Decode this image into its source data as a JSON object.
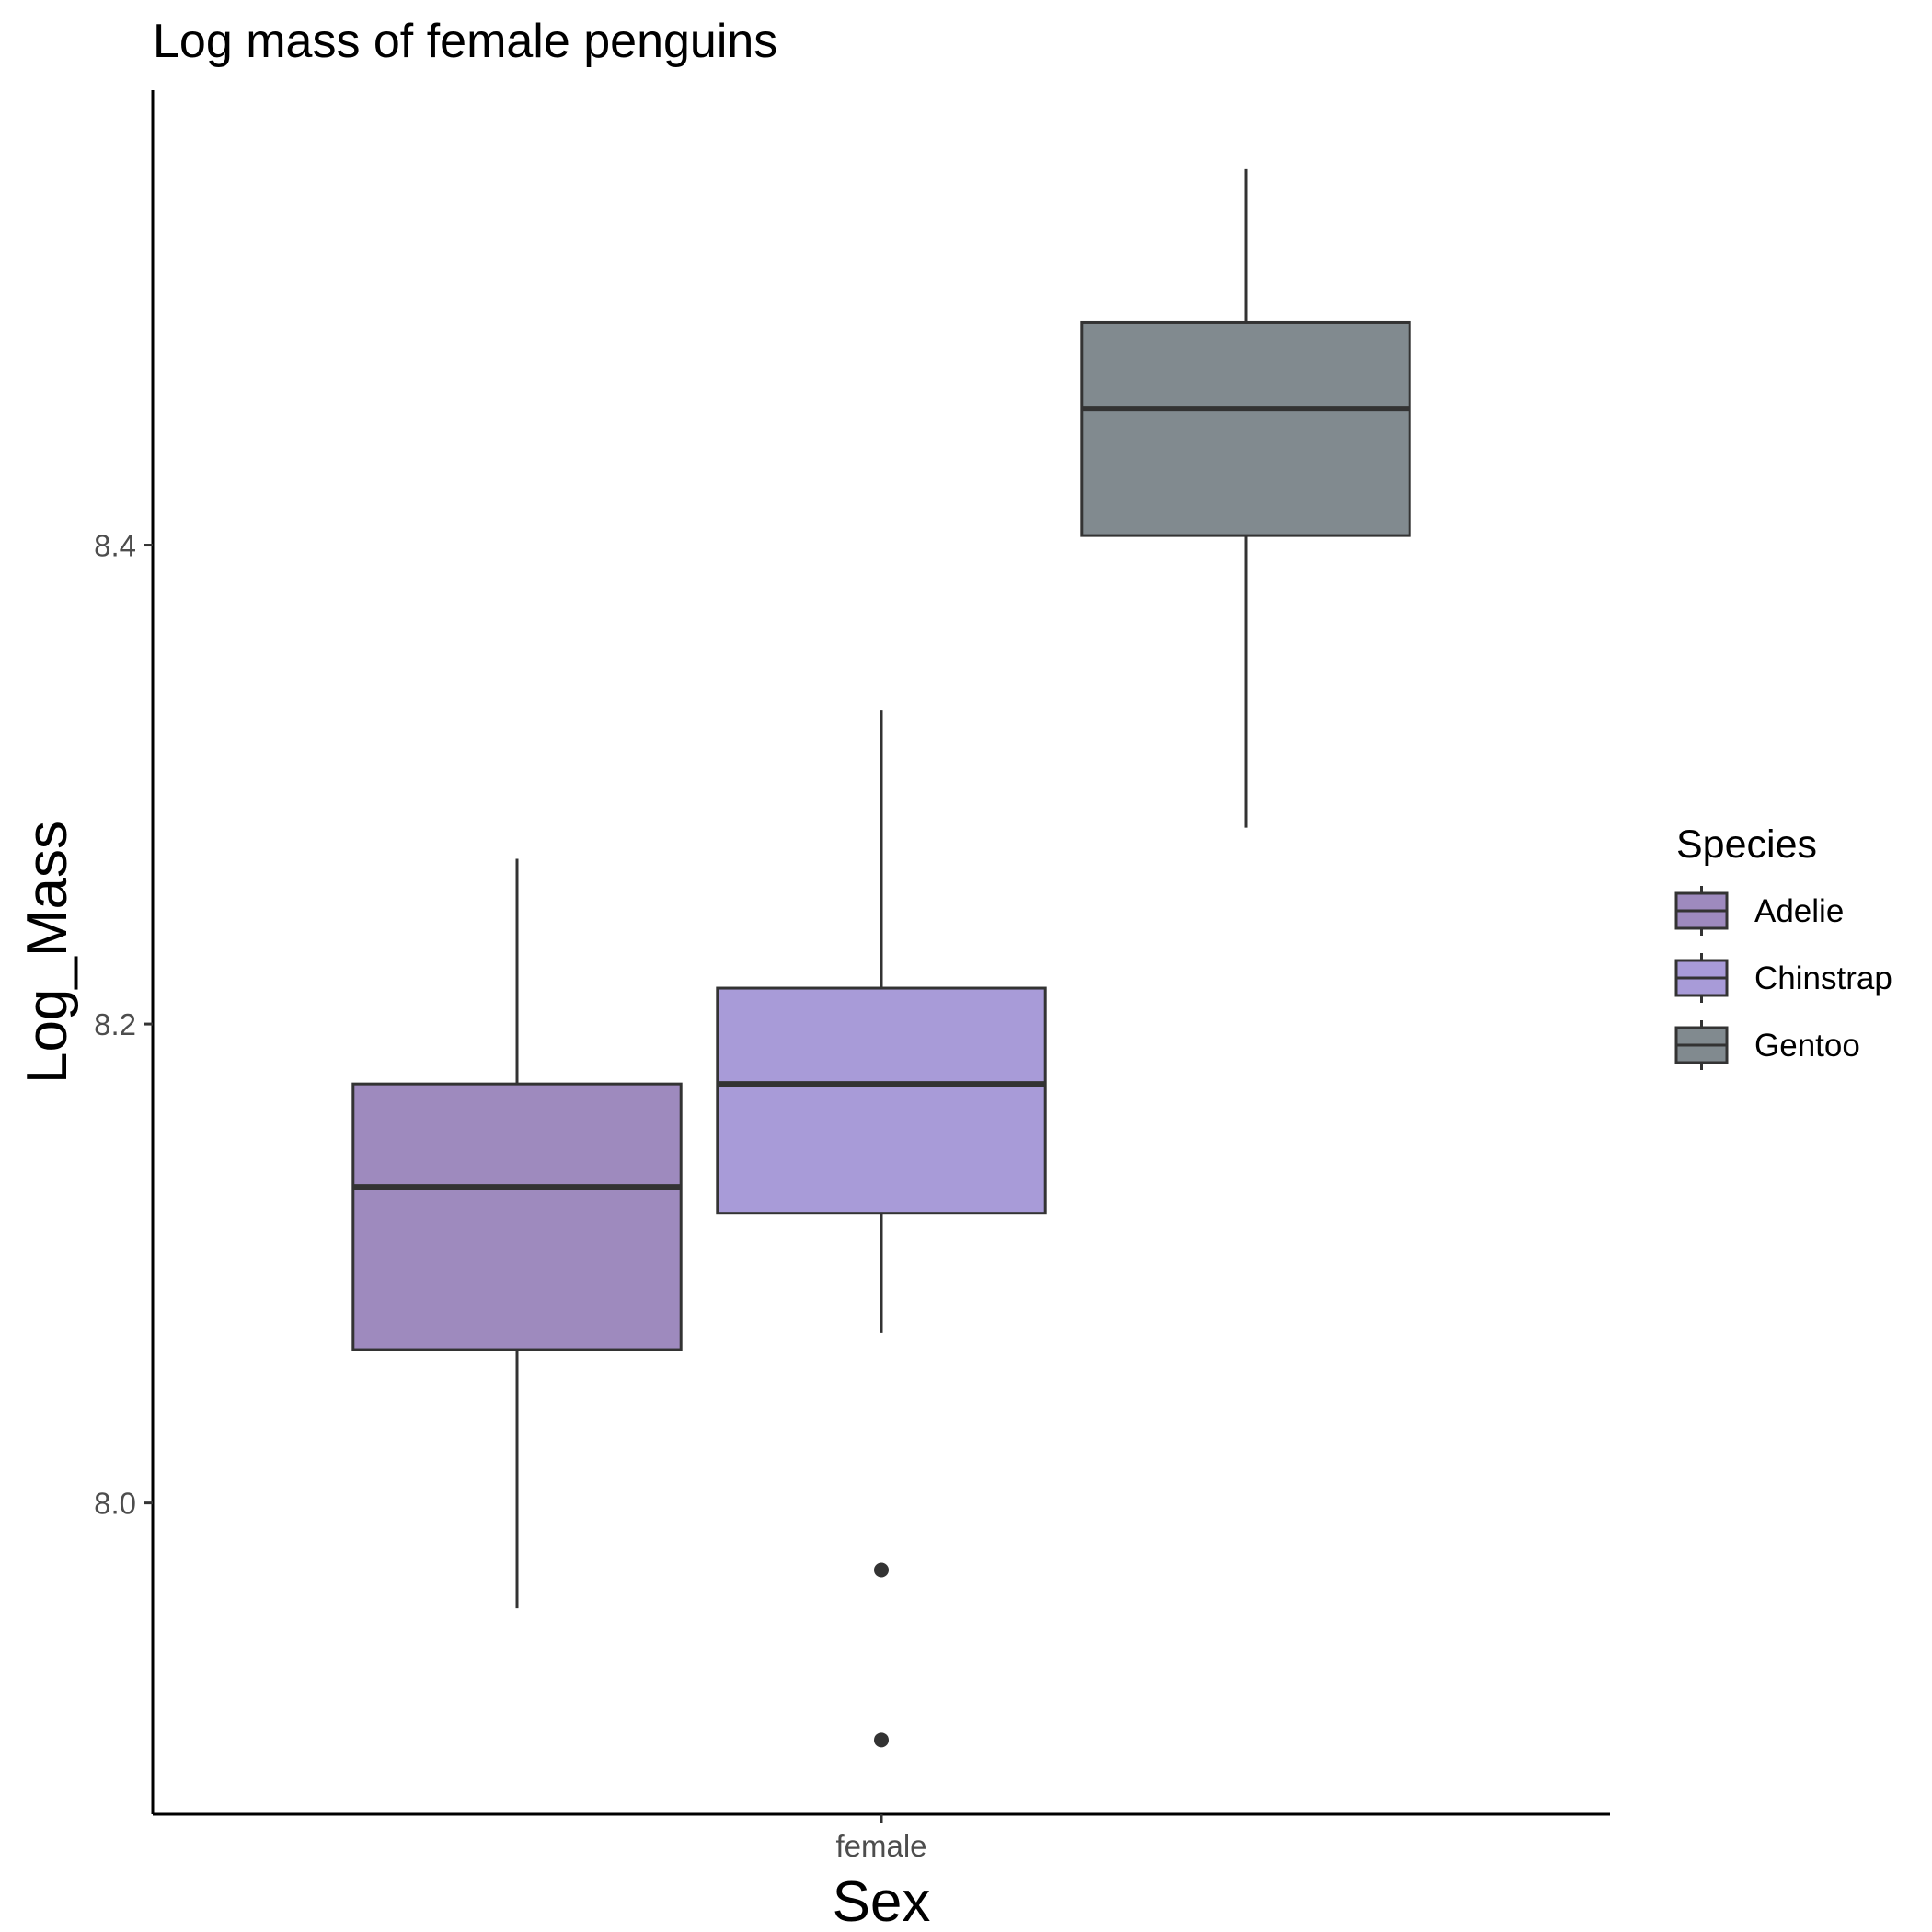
{
  "chart_data": {
    "type": "box",
    "title": "Log mass of female penguins",
    "xlabel": "Sex",
    "ylabel": "Log_Mass",
    "categories": [
      "female"
    ],
    "yticks": [
      "8.0",
      "8.2",
      "8.4"
    ],
    "ylim": [
      7.87,
      8.59
    ],
    "grid": false,
    "legend": {
      "title": "Species",
      "position": "right"
    },
    "series": [
      {
        "name": "Adelie",
        "color": "#9e8abe",
        "stats": {
          "whisker_low": 7.956,
          "q1": 8.064,
          "median": 8.132,
          "q3": 8.175,
          "whisker_high": 8.269
        },
        "outliers": []
      },
      {
        "name": "Chinstrap",
        "color": "#a89bd8",
        "stats": {
          "whisker_low": 8.071,
          "q1": 8.121,
          "median": 8.175,
          "q3": 8.215,
          "whisker_high": 8.331
        },
        "outliers": [
          7.972,
          7.901
        ]
      },
      {
        "name": "Gentoo",
        "color": "#818a8f",
        "stats": {
          "whisker_low": 8.282,
          "q1": 8.404,
          "median": 8.457,
          "q3": 8.493,
          "whisker_high": 8.557
        },
        "outliers": []
      }
    ]
  }
}
